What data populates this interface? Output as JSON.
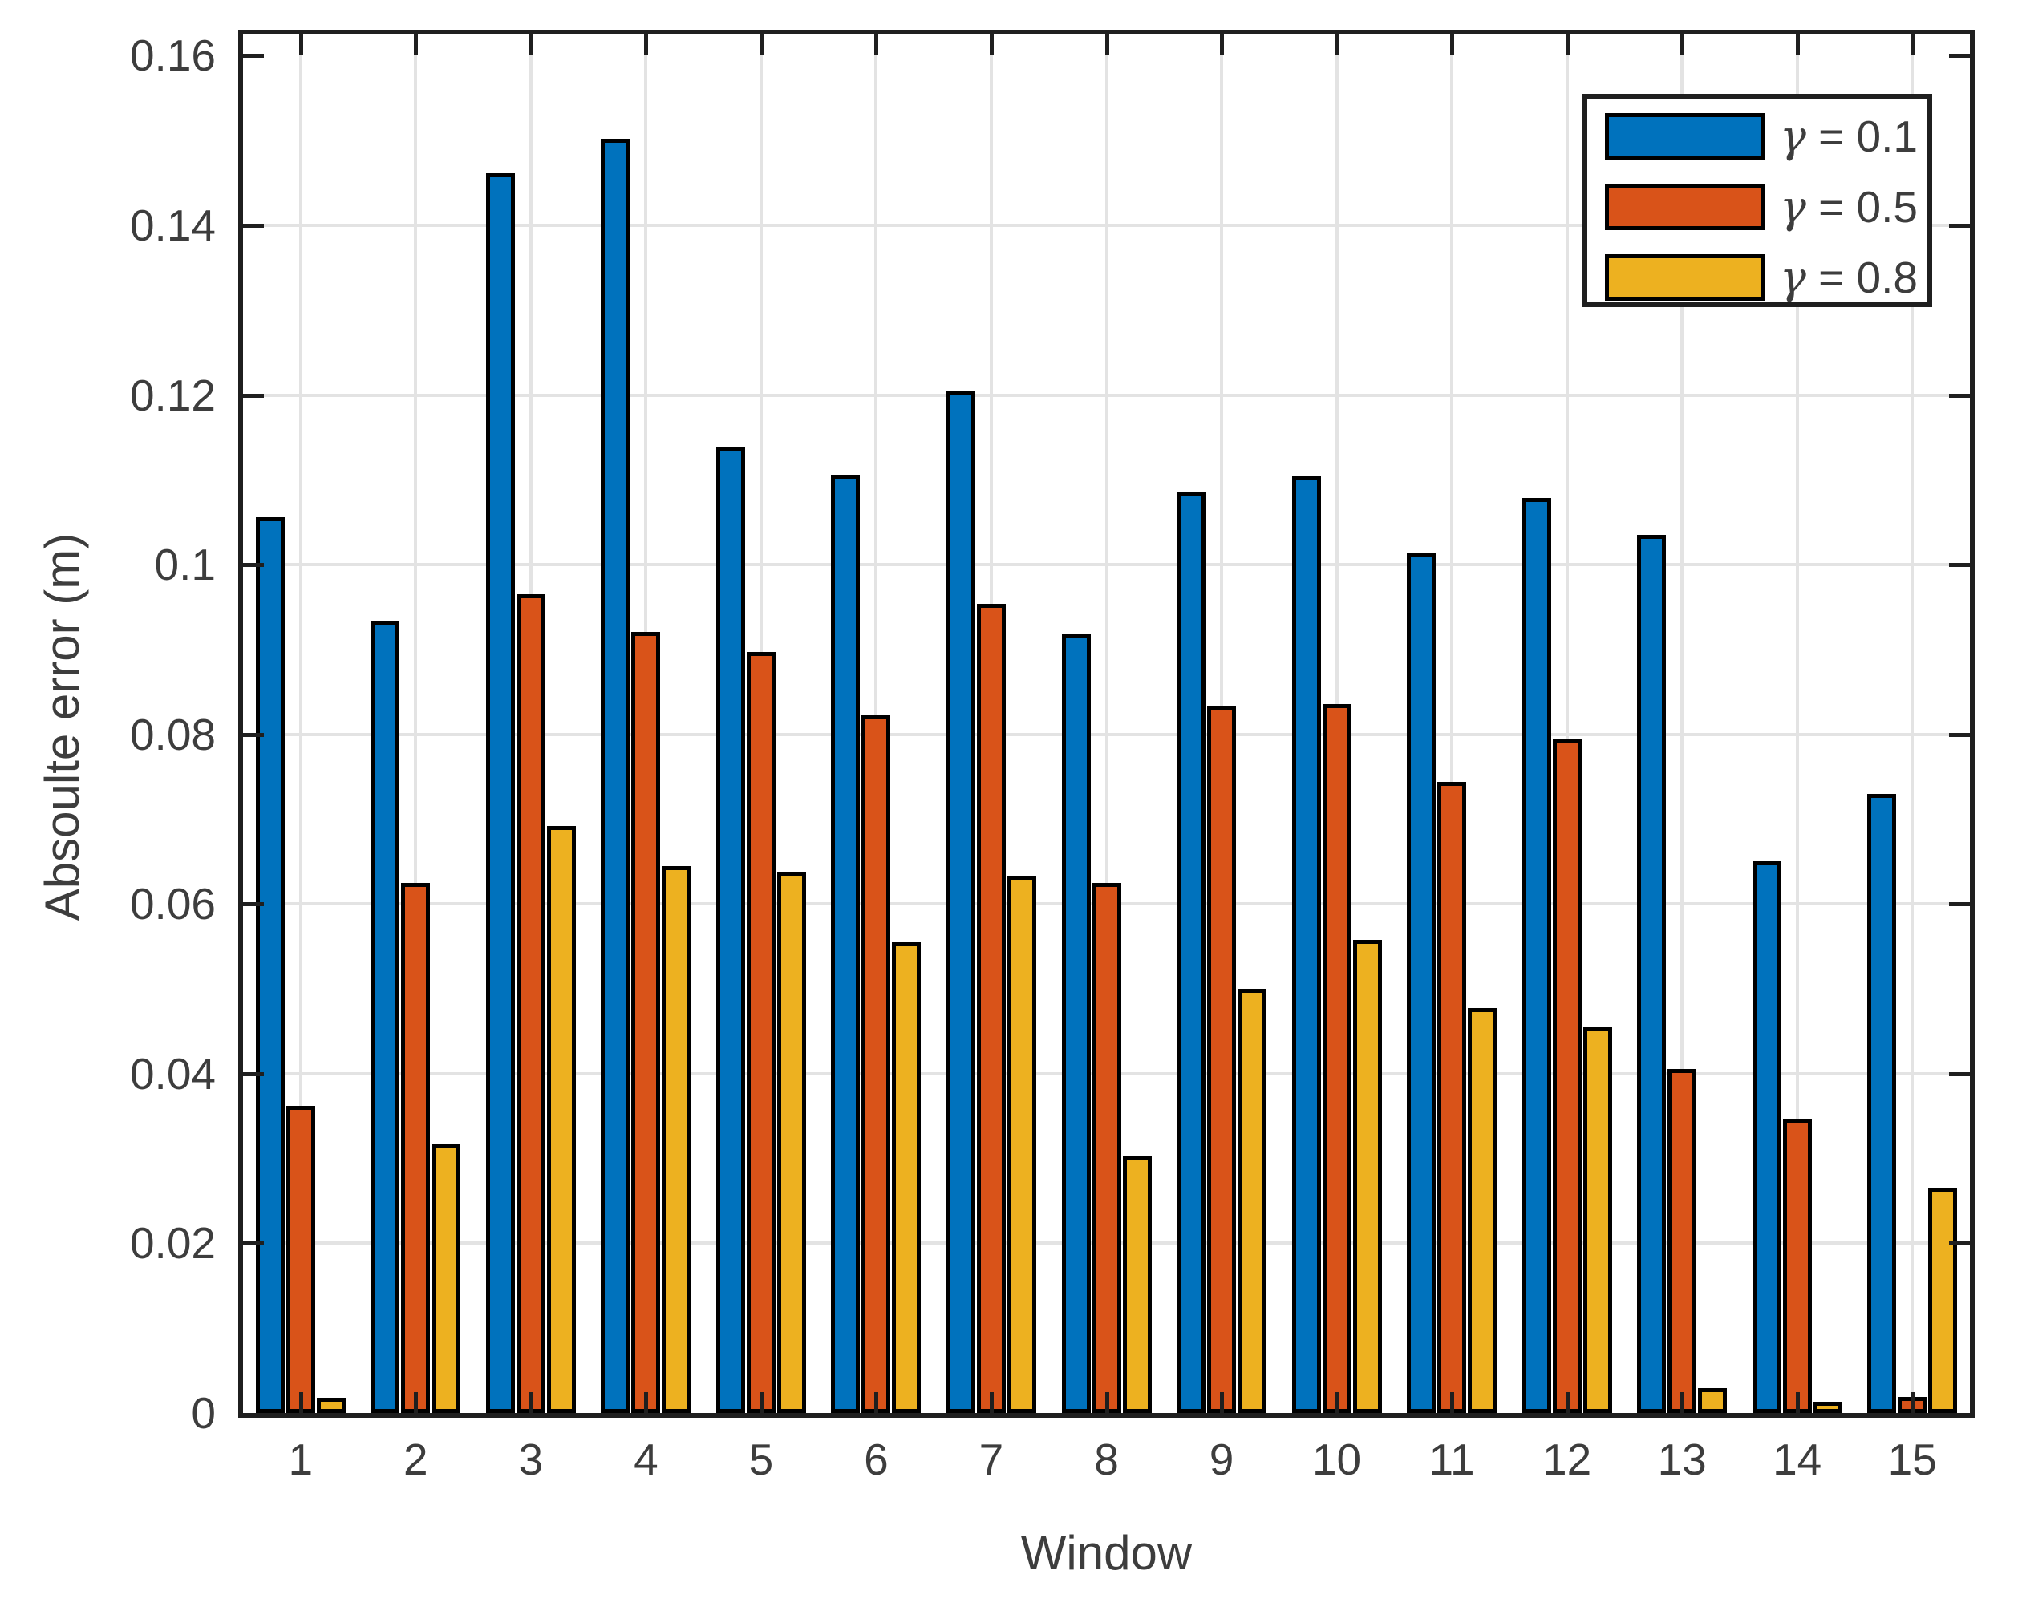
{
  "chart_data": {
    "type": "bar",
    "title": "",
    "xlabel": "Window",
    "ylabel": "Absoulte error (m)",
    "categories": [
      "1",
      "2",
      "3",
      "4",
      "5",
      "6",
      "7",
      "8",
      "9",
      "10",
      "11",
      "12",
      "13",
      "14",
      "15"
    ],
    "y_ticks": [
      {
        "value": 0.0,
        "label": "0"
      },
      {
        "value": 0.02,
        "label": "0.02"
      },
      {
        "value": 0.04,
        "label": "0.04"
      },
      {
        "value": 0.06,
        "label": "0.06"
      },
      {
        "value": 0.08,
        "label": "0.08"
      },
      {
        "value": 0.1,
        "label": "0.1"
      },
      {
        "value": 0.12,
        "label": "0.12"
      },
      {
        "value": 0.14,
        "label": "0.14"
      },
      {
        "value": 0.16,
        "label": "0.16"
      }
    ],
    "ylim": [
      0,
      0.1625
    ],
    "grid": true,
    "legend_position": "top-right",
    "series": [
      {
        "symbol": "γ",
        "label_rest": " = 0.1",
        "name": "γ = 0.1",
        "color": "#0072BD",
        "values": [
          0.1056,
          0.0934,
          0.1461,
          0.1502,
          0.1138,
          0.1106,
          0.1205,
          0.0918,
          0.1085,
          0.1105,
          0.1014,
          0.1079,
          0.1035,
          0.065,
          0.073
        ]
      },
      {
        "symbol": "γ",
        "label_rest": " = 0.5",
        "name": "γ = 0.5",
        "color": "#D95319",
        "values": [
          0.0362,
          0.0625,
          0.0965,
          0.0921,
          0.0897,
          0.0822,
          0.0954,
          0.0625,
          0.0834,
          0.0836,
          0.0744,
          0.0794,
          0.0406,
          0.0346,
          0.0019
        ]
      },
      {
        "symbol": "γ",
        "label_rest": " = 0.8",
        "name": "γ = 0.8",
        "color": "#EDB120",
        "values": [
          0.0018,
          0.0318,
          0.0692,
          0.0645,
          0.0637,
          0.0555,
          0.0632,
          0.0303,
          0.05,
          0.0558,
          0.0477,
          0.0455,
          0.0029,
          0.0013,
          0.0265
        ]
      }
    ],
    "colors": {
      "bar_edge": "#000000",
      "grid": "#e3e3e3",
      "axis": "#1f1f1f",
      "text": "#3d3d3d",
      "background": "#ffffff"
    }
  }
}
